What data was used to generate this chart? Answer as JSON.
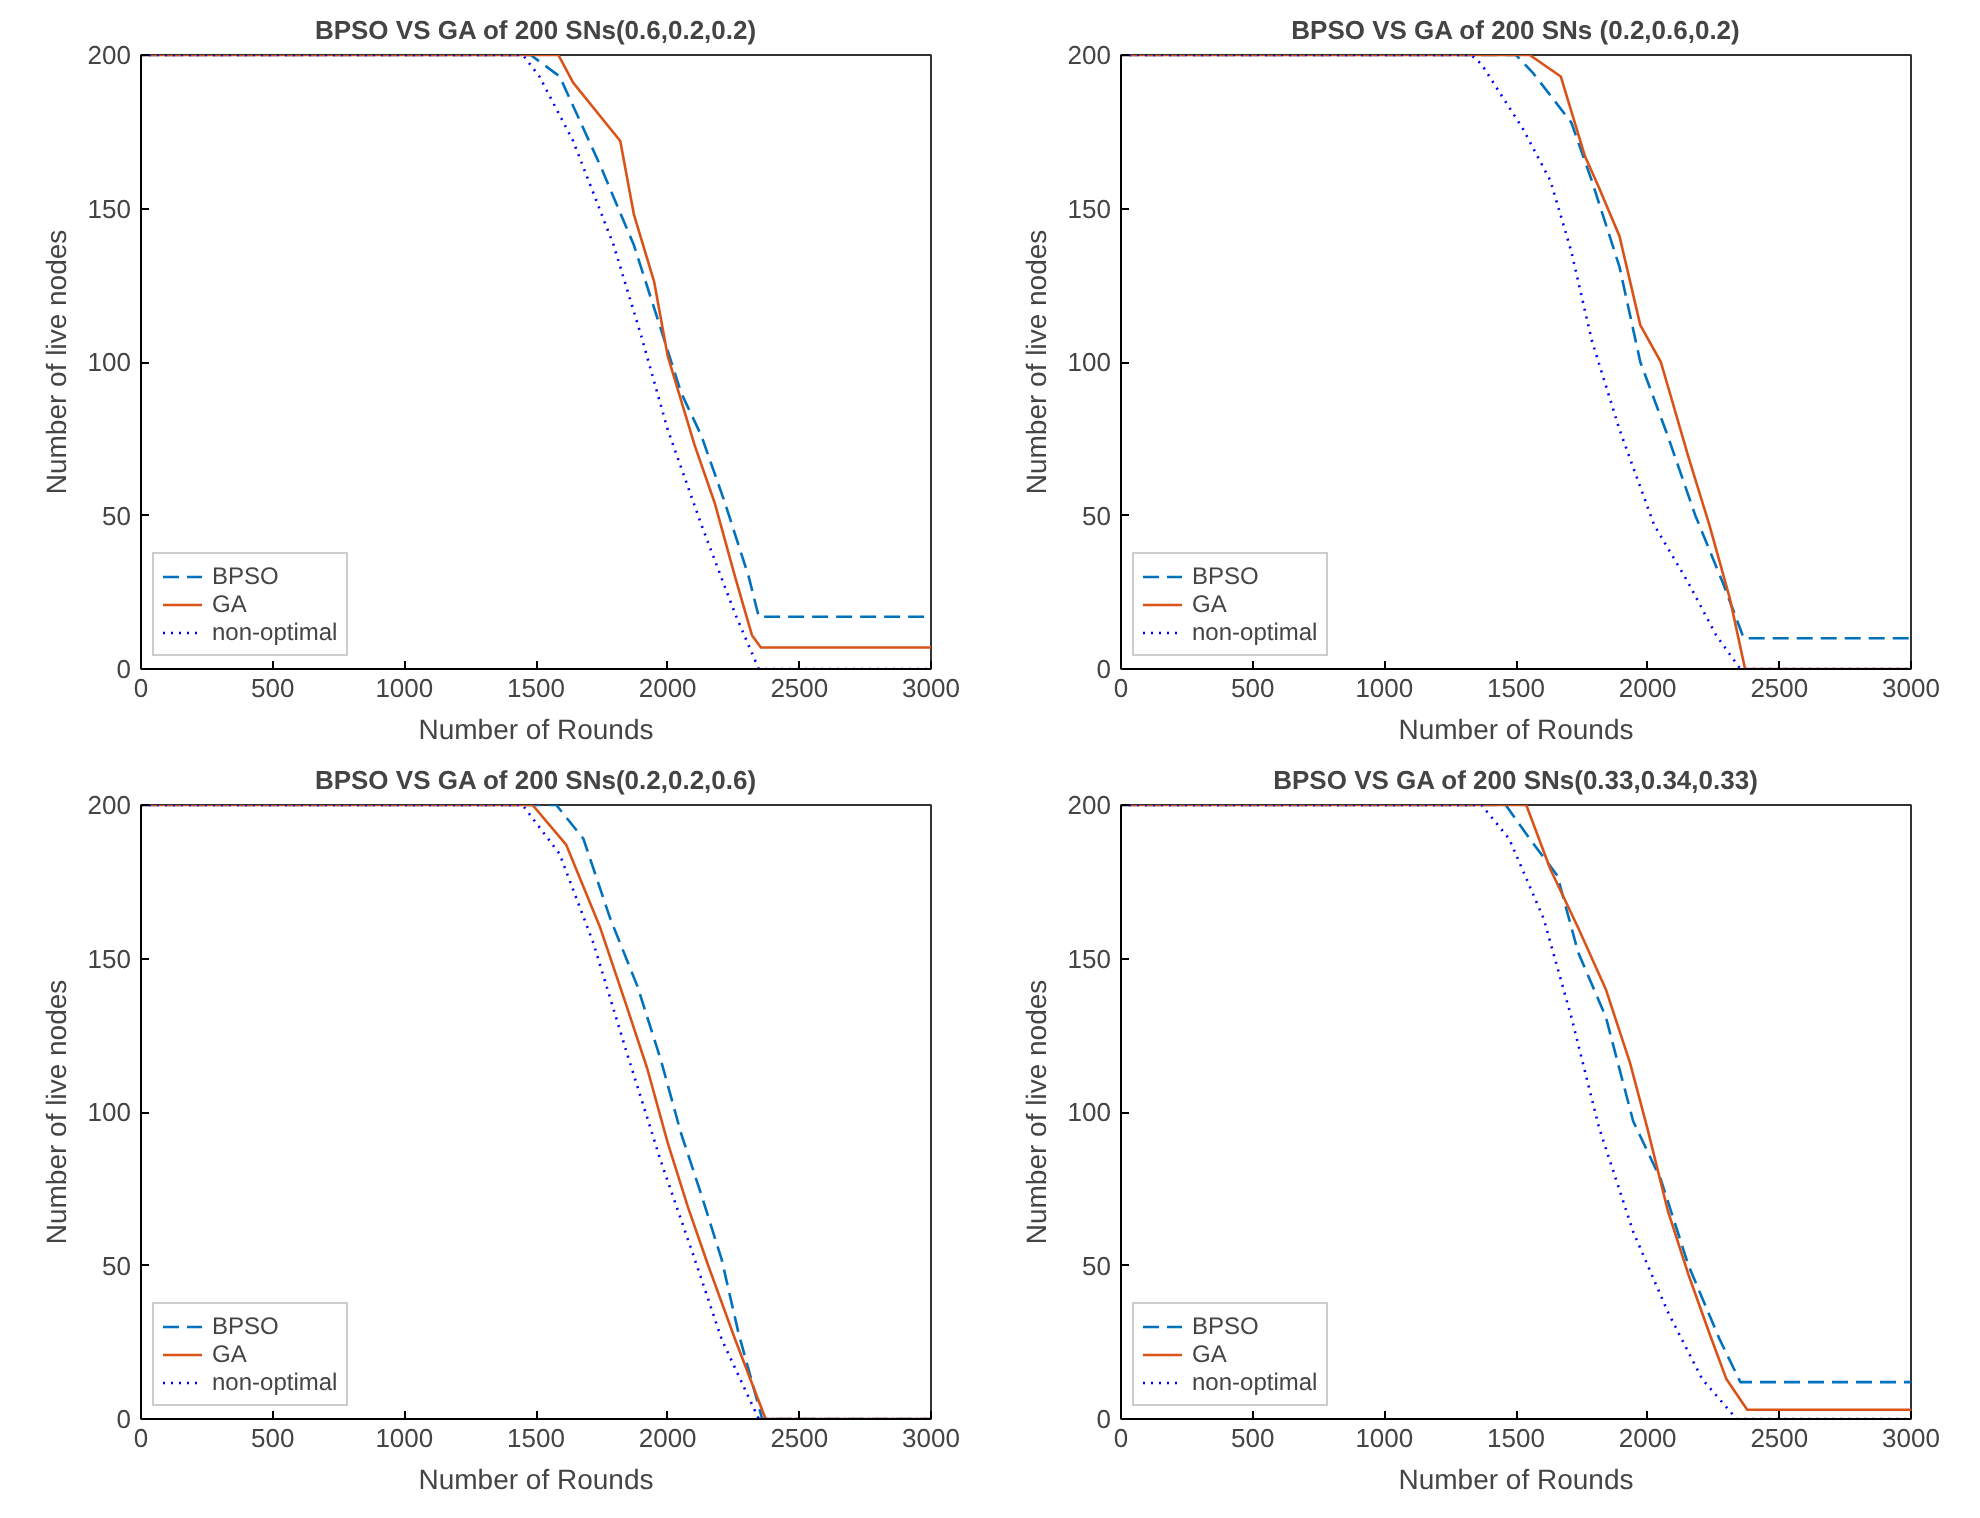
{
  "chart_data": [
    {
      "type": "line",
      "title": "BPSO VS GA of 200 SNs(0.6,0.2,0.2)",
      "xlabel": "Number of Rounds",
      "ylabel": "Number of live nodes",
      "xlim": [
        0,
        3000
      ],
      "ylim": [
        0,
        200
      ],
      "xticks": [
        0,
        500,
        1000,
        1500,
        2000,
        2500,
        3000
      ],
      "yticks": [
        0,
        50,
        100,
        150,
        200
      ],
      "grid": false,
      "legend": "bottom left",
      "series": [
        {
          "name": "BPSO",
          "color": "#0072bd",
          "line_style": "dashed",
          "x": [
            0,
            1480,
            1590,
            1744,
            1872,
            1962,
            2051,
            2128,
            2218,
            2308,
            2346,
            3000
          ],
          "values": [
            200,
            200,
            193,
            164,
            138,
            114,
            90,
            76,
            54,
            30,
            17,
            17
          ]
        },
        {
          "name": "GA",
          "color": "#d95319",
          "line_style": "solid",
          "x": [
            0,
            1585,
            1641,
            1820,
            1872,
            1949,
            2000,
            2102,
            2179,
            2256,
            2320,
            2354,
            3000
          ],
          "values": [
            200,
            200,
            191,
            172,
            148,
            126,
            102,
            73,
            54,
            30,
            11,
            7,
            7
          ]
        },
        {
          "name": "non-optimal",
          "color": "#0000ff",
          "line_style": "dotted",
          "x": [
            0,
            1450,
            1513,
            1641,
            1795,
            1898,
            2000,
            2128,
            2256,
            2346,
            3000
          ],
          "values": [
            200,
            200,
            193,
            172,
            138,
            109,
            78,
            47,
            18,
            0,
            0
          ]
        }
      ]
    },
    {
      "type": "line",
      "title": "BPSO VS GA of 200 SNs (0.2,0.6,0.2)",
      "xlabel": "Number of Rounds",
      "ylabel": "Number of live nodes",
      "xlim": [
        0,
        3000
      ],
      "ylim": [
        0,
        200
      ],
      "xticks": [
        0,
        500,
        1000,
        1500,
        2000,
        2500,
        3000
      ],
      "yticks": [
        0,
        50,
        100,
        150,
        200
      ],
      "grid": false,
      "legend": "bottom left",
      "series": [
        {
          "name": "BPSO",
          "color": "#0072bd",
          "line_style": "dashed",
          "x": [
            0,
            1500,
            1566,
            1710,
            1788,
            1893,
            1972,
            2076,
            2181,
            2286,
            2365,
            3000
          ],
          "values": [
            200,
            200,
            194,
            178,
            159,
            131,
            100,
            76,
            50,
            28,
            10,
            10
          ]
        },
        {
          "name": "GA",
          "color": "#d95319",
          "line_style": "solid",
          "x": [
            0,
            1552,
            1670,
            1762,
            1814,
            1893,
            1972,
            2050,
            2155,
            2234,
            2312,
            2370,
            3000
          ],
          "values": [
            200,
            200,
            193,
            167,
            157,
            141,
            112,
            100,
            69,
            47,
            23,
            0,
            0
          ]
        },
        {
          "name": "non-optimal",
          "color": "#0000ff",
          "line_style": "dotted",
          "x": [
            0,
            1330,
            1369,
            1526,
            1631,
            1710,
            1788,
            1893,
            2024,
            2155,
            2260,
            2352,
            3000
          ],
          "values": [
            200,
            200,
            197,
            176,
            159,
            136,
            107,
            78,
            47,
            28,
            11,
            0,
            0
          ]
        }
      ]
    },
    {
      "type": "line",
      "title": "BPSO VS GA of 200 SNs(0.2,0.2,0.6)",
      "xlabel": "Number of Rounds",
      "ylabel": "Number of live nodes",
      "xlim": [
        0,
        3000
      ],
      "ylim": [
        0,
        200
      ],
      "xticks": [
        0,
        500,
        1000,
        1500,
        2000,
        2500,
        3000
      ],
      "yticks": [
        0,
        50,
        100,
        150,
        200
      ],
      "grid": false,
      "legend": "bottom left",
      "series": [
        {
          "name": "BPSO",
          "color": "#0072bd",
          "line_style": "dashed",
          "x": [
            0,
            1577,
            1680,
            1782,
            1885,
            1974,
            2051,
            2128,
            2205,
            2269,
            2359,
            3000
          ],
          "values": [
            200,
            200,
            189,
            163,
            141,
            117,
            93,
            73,
            52,
            28,
            0,
            0
          ]
        },
        {
          "name": "GA",
          "color": "#d95319",
          "line_style": "solid",
          "x": [
            0,
            1487,
            1615,
            1744,
            1846,
            1923,
            2000,
            2077,
            2154,
            2256,
            2372,
            3000
          ],
          "values": [
            200,
            200,
            187,
            160,
            134,
            114,
            90,
            69,
            50,
            26,
            0,
            0
          ]
        },
        {
          "name": "non-optimal",
          "color": "#0000ff",
          "line_style": "dotted",
          "x": [
            0,
            1449,
            1590,
            1718,
            1846,
            1974,
            2103,
            2205,
            2346,
            3000
          ],
          "values": [
            200,
            200,
            184,
            155,
            119,
            84,
            52,
            26,
            0,
            0
          ]
        }
      ]
    },
    {
      "type": "line",
      "title": "BPSO VS GA of 200 SNs(0.33,0.34,0.33)",
      "xlabel": "Number of Rounds",
      "ylabel": "Number of live nodes",
      "xlim": [
        0,
        3000
      ],
      "ylim": [
        0,
        200
      ],
      "xticks": [
        0,
        500,
        1000,
        1500,
        2000,
        2500,
        3000
      ],
      "yticks": [
        0,
        50,
        100,
        150,
        200
      ],
      "grid": false,
      "legend": "bottom left",
      "series": [
        {
          "name": "BPSO",
          "color": "#0072bd",
          "line_style": "dashed",
          "x": [
            0,
            1461,
            1552,
            1657,
            1736,
            1841,
            1945,
            2050,
            2155,
            2273,
            2352,
            3000
          ],
          "values": [
            200,
            200,
            189,
            177,
            152,
            131,
            97,
            78,
            50,
            26,
            12,
            12
          ]
        },
        {
          "name": "GA",
          "color": "#d95319",
          "line_style": "solid",
          "x": [
            0,
            1539,
            1631,
            1736,
            1841,
            1933,
            1998,
            2076,
            2155,
            2234,
            2299,
            2378,
            3000
          ],
          "values": [
            200,
            200,
            179,
            160,
            140,
            116,
            95,
            68,
            47,
            28,
            13,
            3,
            3
          ]
        },
        {
          "name": "non-optimal",
          "color": "#0000ff",
          "line_style": "dotted",
          "x": [
            0,
            1369,
            1474,
            1605,
            1710,
            1815,
            1945,
            2076,
            2207,
            2338,
            3000
          ],
          "values": [
            200,
            200,
            189,
            163,
            131,
            95,
            61,
            35,
            13,
            0,
            0
          ]
        }
      ]
    }
  ]
}
